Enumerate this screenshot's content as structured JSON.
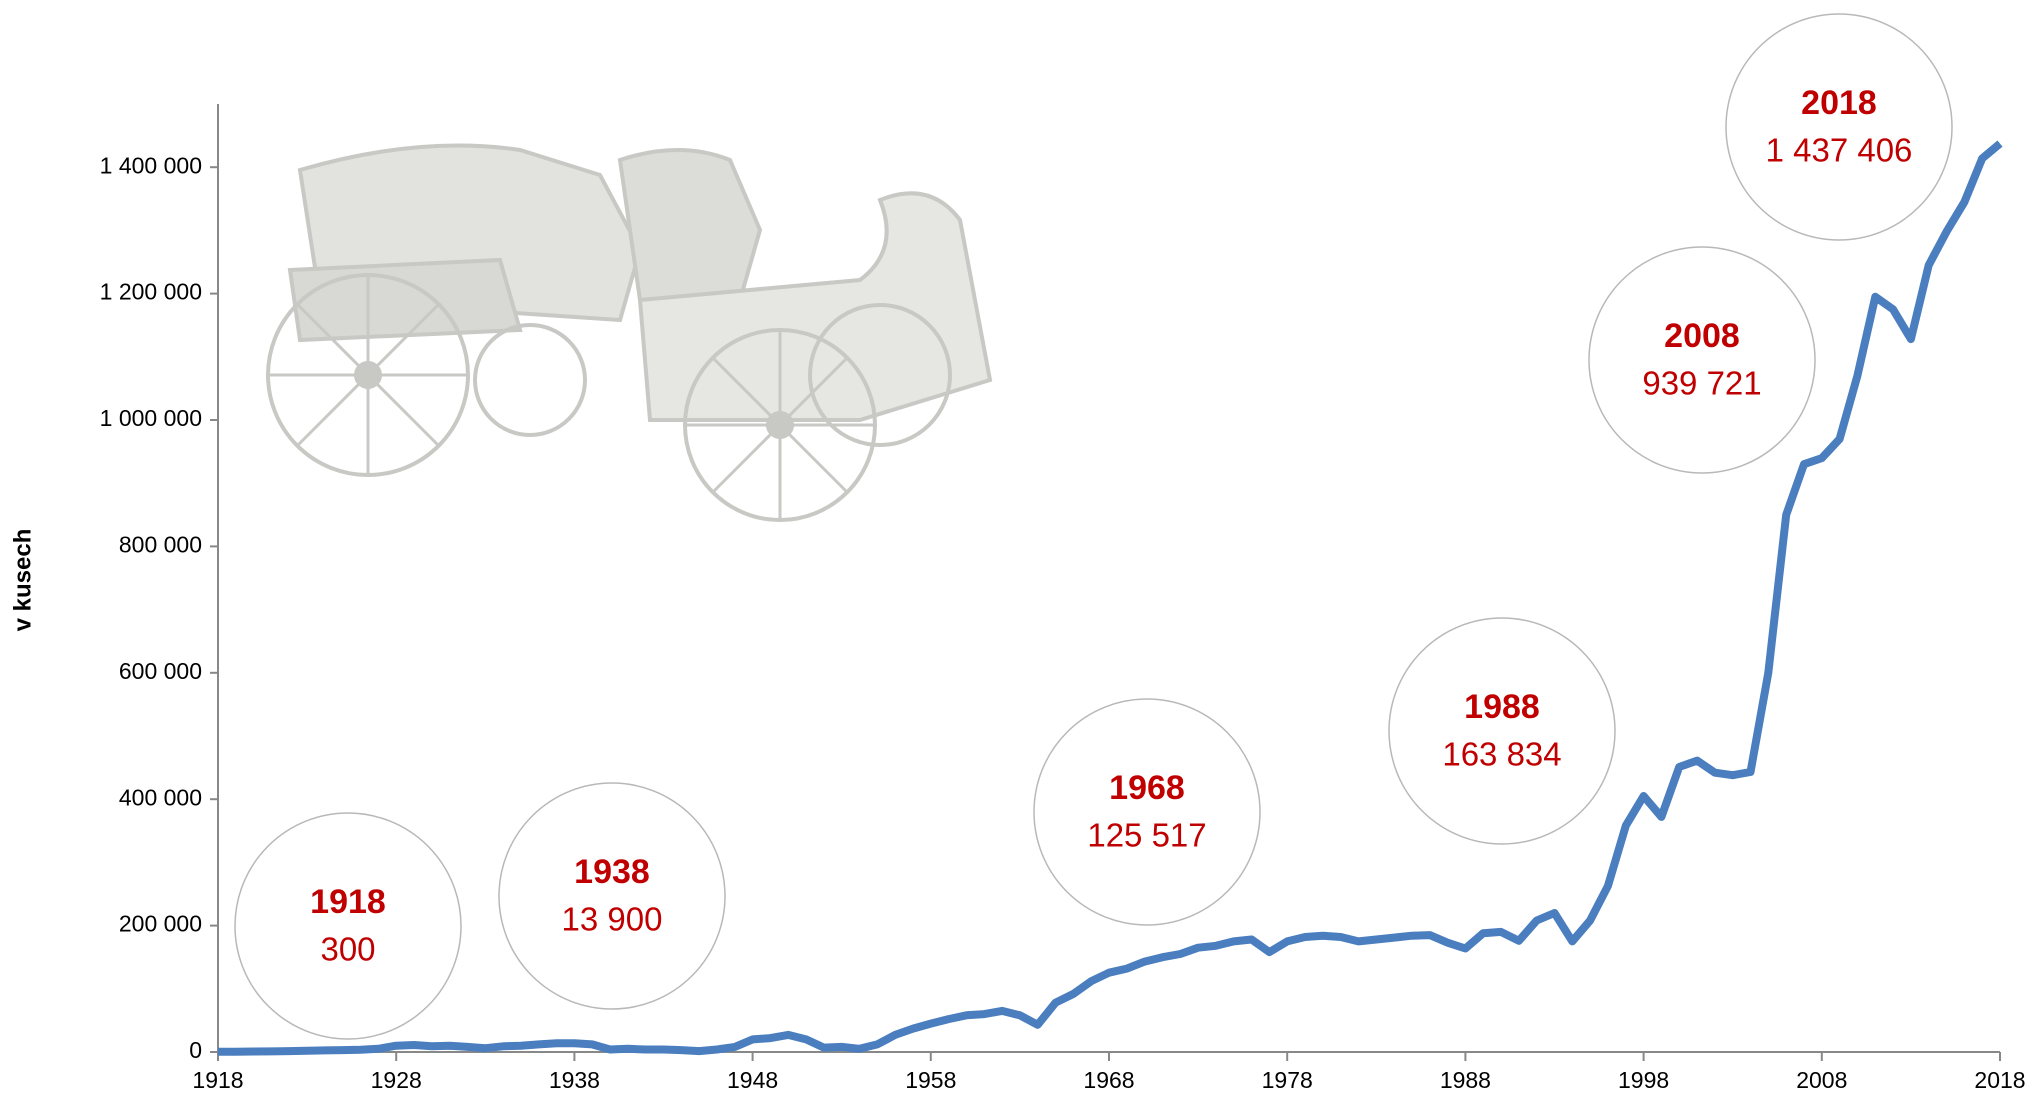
{
  "chart_data": {
    "type": "line",
    "y_label": "v kusech",
    "color": "#4a7ebf",
    "x": [
      1918,
      1919,
      1920,
      1921,
      1922,
      1923,
      1924,
      1925,
      1926,
      1927,
      1928,
      1929,
      1930,
      1931,
      1932,
      1933,
      1934,
      1935,
      1936,
      1937,
      1938,
      1939,
      1940,
      1941,
      1942,
      1943,
      1944,
      1945,
      1946,
      1947,
      1948,
      1949,
      1950,
      1951,
      1952,
      1953,
      1954,
      1955,
      1956,
      1957,
      1958,
      1959,
      1960,
      1961,
      1962,
      1963,
      1964,
      1965,
      1966,
      1967,
      1968,
      1969,
      1970,
      1971,
      1972,
      1973,
      1974,
      1975,
      1976,
      1977,
      1978,
      1979,
      1980,
      1981,
      1982,
      1983,
      1984,
      1985,
      1986,
      1987,
      1988,
      1989,
      1990,
      1991,
      1992,
      1993,
      1994,
      1995,
      1996,
      1997,
      1998,
      1999,
      2000,
      2001,
      2002,
      2003,
      2004,
      2005,
      2006,
      2007,
      2008,
      2009,
      2010,
      2011,
      2012,
      2013,
      2014,
      2015,
      2016,
      2017,
      2018
    ],
    "values": [
      300,
      500,
      800,
      1000,
      1500,
      2000,
      2500,
      3000,
      3500,
      5000,
      10000,
      11000,
      9000,
      10000,
      8000,
      6000,
      9000,
      10000,
      12000,
      14000,
      13900,
      12000,
      4000,
      5000,
      4000,
      4000,
      3000,
      1500,
      4000,
      8000,
      20000,
      22000,
      27000,
      20000,
      7000,
      8000,
      5000,
      12000,
      27000,
      37000,
      45000,
      52000,
      58000,
      60000,
      65000,
      58000,
      43000,
      78000,
      92000,
      112000,
      125517,
      132000,
      143000,
      150000,
      155000,
      165000,
      168000,
      175000,
      178000,
      158000,
      175000,
      182000,
      184000,
      182000,
      175000,
      178000,
      181000,
      184000,
      185000,
      173000,
      163834,
      188000,
      190000,
      176000,
      208000,
      220000,
      175000,
      208000,
      263000,
      358000,
      405000,
      372000,
      451000,
      461000,
      442000,
      438000,
      443000,
      600000,
      850000,
      930000,
      939721,
      970000,
      1070000,
      1195000,
      1175000,
      1128000,
      1245000,
      1298000,
      1345000,
      1414000,
      1437406
    ],
    "xlim": [
      1918,
      2018
    ],
    "xticks": [
      1918,
      1928,
      1938,
      1948,
      1958,
      1968,
      1978,
      1988,
      1998,
      2008,
      2018
    ],
    "ylim": [
      0,
      1500000
    ],
    "yticks": [
      0,
      {
        "value": 200000,
        "label": "200 000"
      },
      {
        "value": 400000,
        "label": "400 000"
      },
      {
        "value": 600000,
        "label": "600 000"
      },
      {
        "value": 800000,
        "label": "800 000"
      },
      {
        "value": 1000000,
        "label": "1 000 000"
      },
      {
        "value": 1200000,
        "label": "1 200 000"
      },
      {
        "value": 1400000,
        "label": "1 400 000"
      }
    ],
    "annotations": [
      {
        "year": "1918",
        "label": "300"
      },
      {
        "year": "1938",
        "label": "13 900"
      },
      {
        "year": "1968",
        "label": "125 517"
      },
      {
        "year": "1988",
        "label": "163 834"
      },
      {
        "year": "2008",
        "label": "939 721"
      },
      {
        "year": "2018",
        "label": "1 437 406"
      }
    ]
  }
}
